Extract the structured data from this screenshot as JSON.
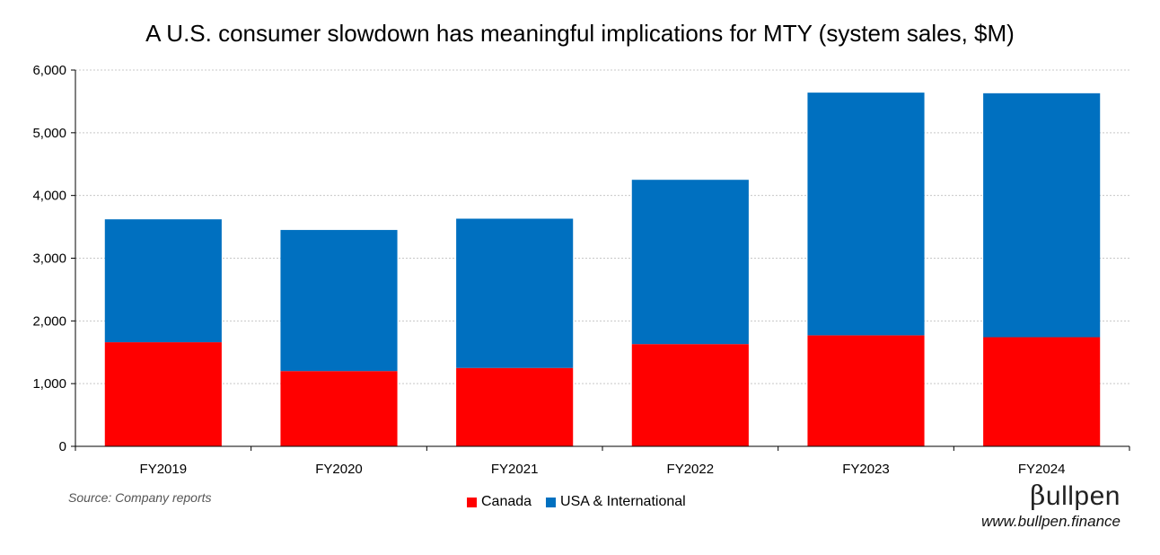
{
  "title": "A U.S. consumer slowdown has meaningful implications for MTY (system sales, $M)",
  "source": "Source: Company reports",
  "brand": {
    "logo_mark": "β",
    "logo_text": "ullpen",
    "url": "www.bullpen.finance"
  },
  "chart_data": {
    "type": "bar",
    "stacked": true,
    "title": "A U.S. consumer slowdown has meaningful implications for MTY (system sales, $M)",
    "categories": [
      "FY2019",
      "FY2020",
      "FY2021",
      "FY2022",
      "FY2023",
      "FY2024"
    ],
    "series": [
      {
        "name": "Canada",
        "color": "#ff0000",
        "values": [
          1660,
          1200,
          1250,
          1630,
          1770,
          1740
        ]
      },
      {
        "name": "USA & International",
        "color": "#0070c0",
        "values": [
          1960,
          2250,
          2380,
          2620,
          3870,
          3890
        ]
      }
    ],
    "ylim": [
      0,
      6000
    ],
    "yticks": [
      0,
      1000,
      2000,
      3000,
      4000,
      5000,
      6000
    ],
    "ytick_labels": [
      "0",
      "1,000",
      "2,000",
      "3,000",
      "4,000",
      "5,000",
      "6,000"
    ],
    "grid": true,
    "legend_position": "bottom"
  }
}
